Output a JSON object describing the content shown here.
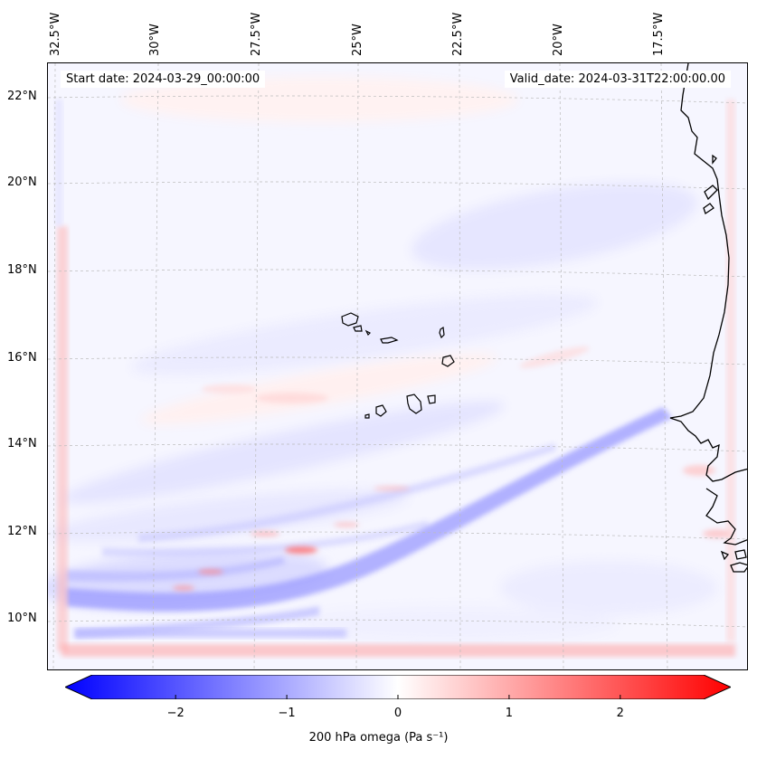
{
  "map": {
    "start_date": "Start date: 2024-03-29_00:00:00",
    "valid_date": "Valid_date: 2024-03-31T22:00:00.00",
    "lon_labels": [
      "32.5°W",
      "30°W",
      "27.5°W",
      "25°W",
      "22.5°W",
      "20°W",
      "17.5°W"
    ],
    "lat_labels": [
      "22°N",
      "20°N",
      "18°N",
      "16°N",
      "14°N",
      "12°N",
      "10°N"
    ],
    "field_colors": {
      "negative": "#0000ff",
      "neutral": "#ffffff",
      "positive": "#ff0000",
      "background": "#f7f7ff",
      "coast": "#000000"
    }
  },
  "colorbar": {
    "min": -2.75,
    "max": 2.75,
    "ticks": [
      "−2",
      "−1",
      "0",
      "1",
      "2"
    ],
    "tick_values": [
      -2,
      -1,
      0,
      1,
      2
    ],
    "label": "200 hPa omega (Pa s⁻¹)",
    "colormap": "bwr",
    "extend": "both"
  }
}
